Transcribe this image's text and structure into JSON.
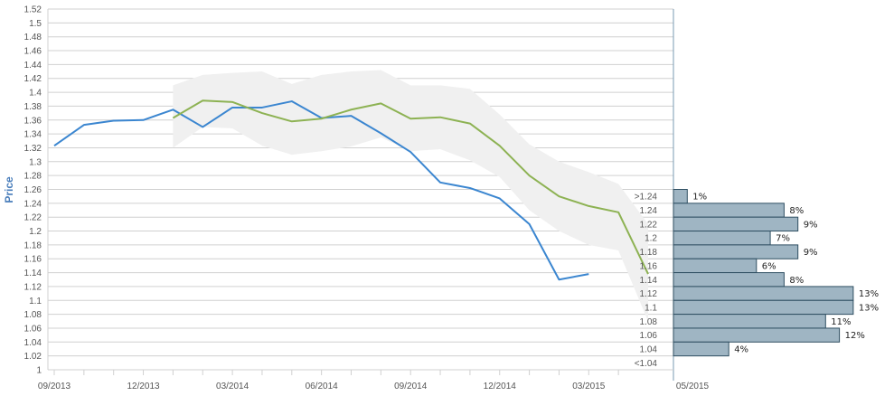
{
  "chart_data": {
    "type": "line",
    "ylabel": "Price",
    "xlabel": "",
    "ylim": [
      1,
      1.52
    ],
    "y_tick_step": 0.02,
    "y_ticks": [
      "1",
      "1.02",
      "1.04",
      "1.06",
      "1.08",
      "1.1",
      "1.12",
      "1.14",
      "1.16",
      "1.18",
      "1.2",
      "1.22",
      "1.24",
      "1.26",
      "1.28",
      "1.3",
      "1.32",
      "1.34",
      "1.36",
      "1.38",
      "1.4",
      "1.42",
      "1.44",
      "1.46",
      "1.48",
      "1.5",
      "1.52"
    ],
    "x_tick_labels": [
      "09/2013",
      "12/2013",
      "03/2014",
      "06/2014",
      "09/2014",
      "12/2014",
      "03/2015",
      "05/2015"
    ],
    "x_months": [
      "2013-09",
      "2013-10",
      "2013-11",
      "2013-12",
      "2014-01",
      "2014-02",
      "2014-03",
      "2014-04",
      "2014-05",
      "2014-06",
      "2014-07",
      "2014-08",
      "2014-09",
      "2014-10",
      "2014-11",
      "2014-12",
      "2015-01",
      "2015-02",
      "2015-03",
      "2015-04",
      "2015-05"
    ],
    "series": [
      {
        "color": "#3b86d0",
        "x": [
          "2013-09",
          "2013-10",
          "2013-11",
          "2013-12",
          "2014-01",
          "2014-02",
          "2014-03",
          "2014-04",
          "2014-05",
          "2014-06",
          "2014-07",
          "2014-08",
          "2014-09",
          "2014-10",
          "2014-11",
          "2014-12",
          "2015-01",
          "2015-02",
          "2015-03"
        ],
        "values": [
          1.323,
          1.353,
          1.359,
          1.36,
          1.375,
          1.35,
          1.378,
          1.378,
          1.387,
          1.363,
          1.366,
          1.341,
          1.314,
          1.27,
          1.262,
          1.247,
          1.21,
          1.13,
          1.138
        ]
      },
      {
        "color": "#8db253",
        "x": [
          "2014-01",
          "2014-02",
          "2014-03",
          "2014-04",
          "2014-05",
          "2014-06",
          "2014-07",
          "2014-08",
          "2014-09",
          "2014-10",
          "2014-11",
          "2014-12",
          "2015-01",
          "2015-02",
          "2015-03",
          "2015-04",
          "2015-05"
        ],
        "values": [
          1.363,
          1.388,
          1.386,
          1.37,
          1.358,
          1.362,
          1.375,
          1.384,
          1.362,
          1.364,
          1.355,
          1.323,
          1.28,
          1.25,
          1.236,
          1.227,
          1.138
        ]
      }
    ],
    "band": {
      "color": "#f0f0f0",
      "x": [
        "2014-01",
        "2014-02",
        "2014-03",
        "2014-04",
        "2014-05",
        "2014-06",
        "2014-07",
        "2014-08",
        "2014-09",
        "2014-10",
        "2014-11",
        "2014-12",
        "2015-01",
        "2015-02",
        "2015-03",
        "2015-04",
        "2015-05"
      ],
      "upper": [
        1.41,
        1.425,
        1.428,
        1.43,
        1.412,
        1.425,
        1.43,
        1.432,
        1.41,
        1.41,
        1.405,
        1.368,
        1.325,
        1.3,
        1.285,
        1.268,
        1.21
      ],
      "lower": [
        1.32,
        1.35,
        1.348,
        1.323,
        1.31,
        1.315,
        1.322,
        1.335,
        1.315,
        1.318,
        1.302,
        1.278,
        1.23,
        1.2,
        1.18,
        1.172,
        1.07
      ]
    },
    "histogram": {
      "color": "#9fb5c3",
      "edge_color": "#2f4f62",
      "bins": [
        {
          "label": ">1.24",
          "value": 1,
          "text": "1%",
          "from": 1.24,
          "to": 1.26
        },
        {
          "label": "1.24",
          "value": 8,
          "text": "8%",
          "from": 1.22,
          "to": 1.24
        },
        {
          "label": "1.22",
          "value": 9,
          "text": "9%",
          "from": 1.2,
          "to": 1.22
        },
        {
          "label": "1.2",
          "value": 7,
          "text": "7%",
          "from": 1.18,
          "to": 1.2
        },
        {
          "label": "1.18",
          "value": 9,
          "text": "9%",
          "from": 1.16,
          "to": 1.18
        },
        {
          "label": "1.16",
          "value": 6,
          "text": "6%",
          "from": 1.14,
          "to": 1.16
        },
        {
          "label": "1.14",
          "value": 8,
          "text": "8%",
          "from": 1.12,
          "to": 1.14
        },
        {
          "label": "1.12",
          "value": 13,
          "text": "13%",
          "from": 1.1,
          "to": 1.12
        },
        {
          "label": "1.1",
          "value": 13,
          "text": "13%",
          "from": 1.08,
          "to": 1.1
        },
        {
          "label": "1.08",
          "value": 11,
          "text": "11%",
          "from": 1.06,
          "to": 1.08
        },
        {
          "label": "1.06",
          "value": 12,
          "text": "12%",
          "from": 1.04,
          "to": 1.06
        },
        {
          "label": "1.04",
          "value": 4,
          "text": "4%",
          "from": 1.02,
          "to": 1.04
        },
        {
          "label": "<1.04",
          "value": 0,
          "text": "",
          "from": 1.0,
          "to": 1.02
        }
      ]
    },
    "colors": {
      "grid": "#d0d0d0",
      "axis": "#7a9bb3",
      "tick_text": "#555555",
      "ylabel": "#4a7ebb"
    }
  }
}
